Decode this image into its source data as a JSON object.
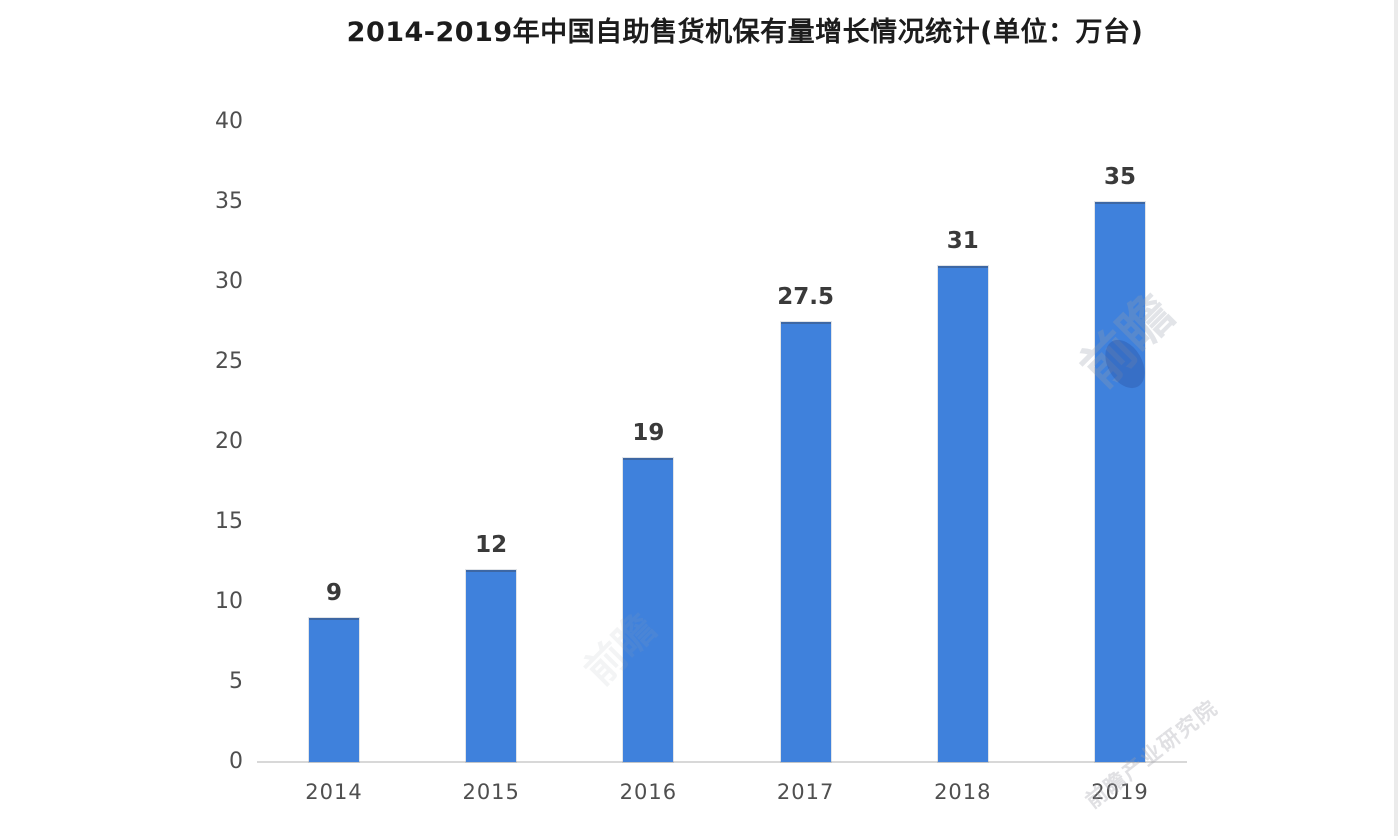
{
  "chart_data": {
    "type": "bar",
    "title": "2014-2019年中国自助售货机保有量增长情况统计(单位：万台)",
    "unit": "万台",
    "categories": [
      "2014",
      "2015",
      "2016",
      "2017",
      "2018",
      "2019"
    ],
    "values": [
      9,
      12,
      19,
      27.5,
      31,
      35
    ],
    "value_labels": [
      "9",
      "12",
      "19",
      "27.5",
      "31",
      "35"
    ],
    "xlabel": "",
    "ylabel": "",
    "ylim": [
      0,
      40
    ],
    "yticks": [
      0,
      5,
      10,
      15,
      20,
      25,
      30,
      35,
      40
    ],
    "grid": false,
    "legend_position": "none",
    "colors": {
      "bar": "#3f81dc",
      "axis_line": "#d8d8d8",
      "title": "#1c1c1c",
      "value_label": "#3a3a3a",
      "tick_label": "#4f4f4f"
    }
  },
  "watermarks": [
    {
      "text": "前瞻"
    },
    {
      "text": "前瞻产业研究院"
    },
    {
      "text": "前瞻"
    }
  ]
}
